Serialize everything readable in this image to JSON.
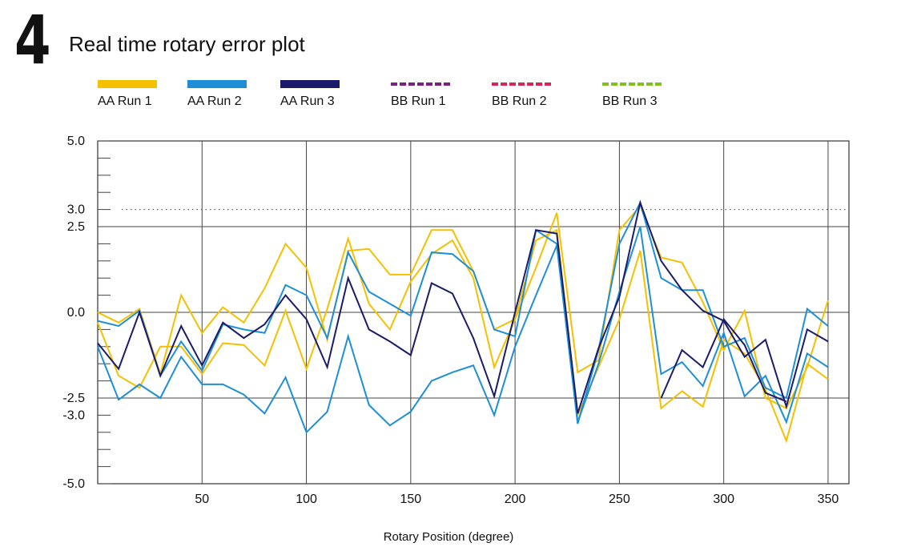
{
  "step_number": "4",
  "chart_data": {
    "type": "line",
    "title": "Real time rotary error plot",
    "xlabel": "Rotary Position (degree)",
    "ylabel": "",
    "xlim": [
      0,
      360
    ],
    "ylim": [
      -5,
      5
    ],
    "x_ticks": [
      50,
      100,
      150,
      200,
      250,
      300,
      350
    ],
    "y_ticks": [
      5.0,
      3.0,
      2.5,
      0.0,
      -2.5,
      -3.0,
      -5.0
    ],
    "y_tick_labels": [
      "5.0",
      "3.0",
      "2.5",
      "0.0",
      "-2.5",
      "-3.0",
      "-5.0"
    ],
    "reference_line": 3.0,
    "grid": true,
    "legend_position": "top",
    "series": [
      {
        "name": "AA Run 1",
        "color": "#f5c000",
        "dash": false,
        "x": [
          0,
          10,
          20,
          30,
          40,
          50,
          60,
          70,
          80,
          90,
          100,
          110,
          120,
          130,
          140,
          150,
          160,
          170,
          180,
          190,
          200,
          210,
          220,
          230,
          240,
          250,
          260,
          270,
          280,
          290,
          300,
          310,
          320,
          330,
          340,
          350
        ],
        "y": [
          0.0,
          -0.3,
          0.1,
          -1.8,
          0.5,
          -0.6,
          0.15,
          -0.3,
          0.7,
          2.0,
          1.3,
          -0.8,
          1.8,
          1.85,
          1.1,
          1.1,
          2.4,
          2.4,
          1.2,
          -0.5,
          -0.2,
          1.3,
          2.9,
          -1.75,
          -1.4,
          2.4,
          3.1,
          1.6,
          1.45,
          0.3,
          -1.1,
          0.05,
          -2.5,
          -2.8,
          -1.6,
          0.35
        ]
      },
      {
        "name": "AA Run 1",
        "color": "#f5c000",
        "dash": false,
        "x": [
          0,
          10,
          20,
          30,
          40,
          50,
          60,
          70,
          80,
          90,
          100,
          110,
          120,
          130,
          140,
          150,
          160,
          170,
          180,
          190,
          200,
          210,
          220,
          230,
          240,
          250,
          260,
          270,
          280,
          290,
          300,
          310,
          320,
          330,
          340,
          350
        ],
        "y": [
          -0.3,
          -1.85,
          -2.2,
          -1.0,
          -1.0,
          -1.8,
          -0.9,
          -0.95,
          -1.55,
          0.05,
          -1.65,
          0.1,
          2.15,
          0.25,
          -0.5,
          0.9,
          1.7,
          2.1,
          1.0,
          -1.6,
          -0.2,
          2.1,
          2.4,
          -3.0,
          -1.6,
          -0.2,
          1.8,
          -2.8,
          -2.3,
          -2.75,
          -0.8,
          -1.2,
          -2.25,
          -3.75,
          -1.5,
          -1.95
        ]
      },
      {
        "name": "AA Run 2",
        "color": "#1e8fd6",
        "dash": false,
        "x": [
          0,
          10,
          20,
          30,
          40,
          50,
          60,
          70,
          80,
          90,
          100,
          110,
          120,
          130,
          140,
          150,
          160,
          170,
          180,
          190,
          200,
          210,
          220,
          230,
          240,
          250,
          260,
          270,
          280,
          290,
          300,
          310,
          320,
          330,
          340,
          350
        ],
        "y": [
          -0.25,
          -0.4,
          0.05,
          -1.85,
          -0.85,
          -1.7,
          -0.35,
          -0.5,
          -0.6,
          0.8,
          0.5,
          -0.75,
          1.75,
          0.6,
          0.25,
          -0.1,
          1.75,
          1.7,
          1.2,
          -0.5,
          -0.7,
          2.4,
          2.0,
          -3.25,
          -1.1,
          2.0,
          3.2,
          1.0,
          0.65,
          0.65,
          -1.0,
          -0.75,
          -2.2,
          -2.5,
          0.1,
          -0.4
        ]
      },
      {
        "name": "AA Run 2",
        "color": "#1e8fd6",
        "dash": false,
        "x": [
          0,
          10,
          20,
          30,
          40,
          50,
          60,
          70,
          80,
          90,
          100,
          110,
          120,
          130,
          140,
          150,
          160,
          170,
          180,
          190,
          200,
          210,
          220,
          230,
          240,
          250,
          260,
          270,
          280,
          290,
          300,
          310,
          320,
          330,
          340,
          350
        ],
        "y": [
          -1.0,
          -2.55,
          -2.1,
          -2.5,
          -1.3,
          -2.1,
          -2.1,
          -2.4,
          -2.95,
          -1.9,
          -3.5,
          -2.9,
          -0.7,
          -2.7,
          -3.3,
          -2.9,
          -2.0,
          -1.75,
          -1.55,
          -3.0,
          -1.0,
          0.5,
          1.95,
          -3.2,
          -1.5,
          0.6,
          2.5,
          -1.8,
          -1.45,
          -2.15,
          -0.6,
          -2.45,
          -1.85,
          -3.2,
          -1.2,
          -1.6
        ]
      },
      {
        "name": "AA Run 3",
        "color": "#1b1b6b",
        "dash": false,
        "x": [
          0,
          10,
          20,
          30,
          40,
          50,
          60,
          70,
          80,
          90,
          100,
          110,
          120,
          130,
          140,
          150,
          160,
          170,
          180,
          190,
          200,
          210,
          220,
          230,
          240,
          250,
          260,
          270,
          280,
          290,
          300,
          310,
          320,
          330,
          340,
          350
        ],
        "y": [
          -0.9,
          -1.65,
          0.0,
          -1.85,
          -0.4,
          -1.55,
          -0.3,
          -0.75,
          -0.35,
          0.5,
          -0.2,
          -1.6,
          1.0,
          -0.5,
          -0.85,
          -1.25,
          0.85,
          0.55,
          -0.75,
          -2.45,
          0.0,
          2.4,
          2.3,
          -2.95,
          -1.05,
          0.45,
          3.2,
          1.5,
          0.65,
          0.05,
          -0.25,
          -1.3,
          -0.8,
          -2.75,
          -0.5,
          -0.85
        ]
      },
      {
        "name": "AA Run 3",
        "color": "#1b1b6b",
        "dash": false,
        "x": [
          270,
          280,
          290,
          300,
          310,
          320,
          330
        ],
        "y": [
          -2.5,
          -1.1,
          -1.6,
          -0.2,
          -0.95,
          -2.35,
          -2.6
        ]
      }
    ],
    "legend": [
      {
        "label": "AA Run 1",
        "color": "#f5c000",
        "dashed": false
      },
      {
        "label": "AA Run 2",
        "color": "#1e8fd6",
        "dashed": false
      },
      {
        "label": "AA Run 3",
        "color": "#1b1b6b",
        "dashed": false
      },
      {
        "label": "BB Run 1",
        "color": "#7b1f84",
        "dashed": true
      },
      {
        "label": "BB Run 2",
        "color": "#d8245a",
        "dashed": true
      },
      {
        "label": "BB Run 3",
        "color": "#7ec21c",
        "dashed": true
      }
    ]
  }
}
